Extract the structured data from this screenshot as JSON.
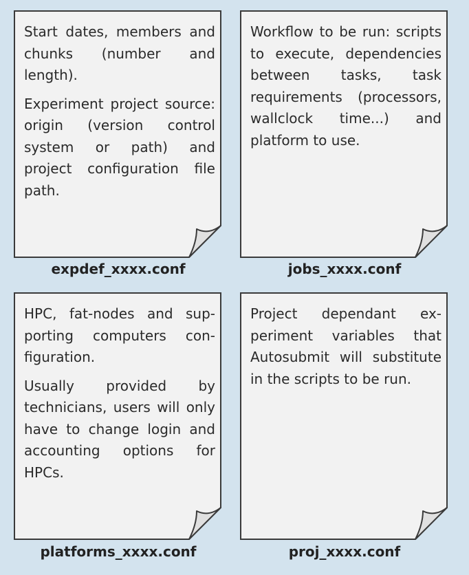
{
  "files": [
    {
      "filename": "expdef_xxxx.conf",
      "paragraphs": [
        "Start dates, members and chunks (number and length).",
        "Experiment project source: origin (version control system or path) and project configura­tion file path."
      ]
    },
    {
      "filename": "jobs_xxxx.conf",
      "paragraphs": [
        "Workflow to be run: scripts to execute, de­pendencies between tasks, task requirements (processors, wallclock time...) and platform to use."
      ]
    },
    {
      "filename": "platforms_xxxx.conf",
      "paragraphs": [
        "HPC, fat-nodes and sup­porting computers con­figuration.",
        "Usually provided by technicians, users will only have to change login and accounting options for HPCs."
      ]
    },
    {
      "filename": "proj_xxxx.conf",
      "paragraphs": [
        "Project dependant ex­periment variables that Autosubmit will substi­tute in the scripts to be run."
      ]
    }
  ],
  "colors": {
    "background": "#d3e3ee",
    "page_fill": "#f2f2f2",
    "page_stroke": "#3a3a3a",
    "fold_fill": "#e0e0e0"
  }
}
